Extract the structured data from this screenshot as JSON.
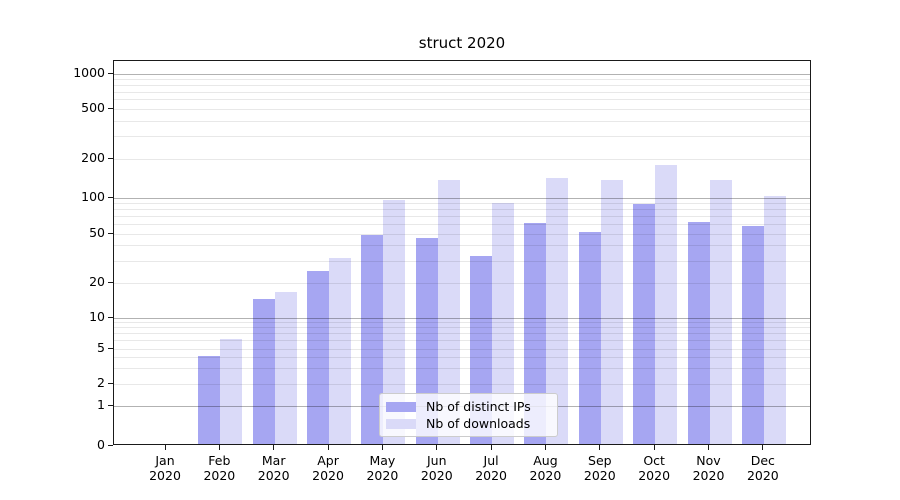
{
  "chart_data": {
    "type": "bar",
    "title": "struct 2020",
    "categories": [
      "Jan 2020",
      "Feb 2020",
      "Mar 2020",
      "Apr 2020",
      "May 2020",
      "Jun 2020",
      "Jul 2020",
      "Aug 2020",
      "Sep 2020",
      "Oct 2020",
      "Nov 2020",
      "Dec 2020"
    ],
    "series": [
      {
        "name": "Nb of distinct IPs",
        "color": "#a6a6f2",
        "values": [
          0,
          4,
          14,
          24,
          47,
          45,
          32,
          60,
          50,
          85,
          61,
          56
        ]
      },
      {
        "name": "Nb of downloads",
        "color": "#dadaf8",
        "values": [
          0,
          6,
          16,
          31,
          93,
          133,
          87,
          138,
          133,
          173,
          133,
          100
        ]
      }
    ],
    "xlabel": "",
    "ylabel": "",
    "yscale": "symlog",
    "yticks": [
      0,
      1,
      2,
      5,
      10,
      20,
      50,
      100,
      200,
      500,
      1000
    ],
    "ylim": [
      0,
      1300
    ],
    "grid": true,
    "legend_position": "lower-center"
  },
  "colors": {
    "bar_distinct_ips": "#a6a6f2",
    "bar_downloads": "#dadaf8",
    "grid_minor": "#e9e9e9",
    "grid_major": "#b3b3b3",
    "spine": "#1a1a1a",
    "legend_border": "#cccccc",
    "background": "#ffffff"
  }
}
